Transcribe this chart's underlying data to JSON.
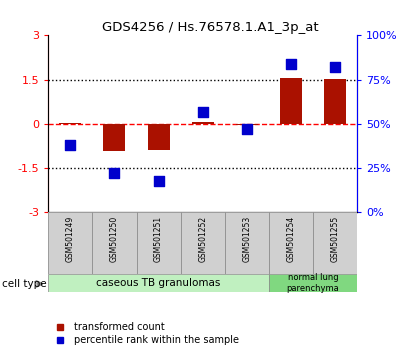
{
  "title": "GDS4256 / Hs.76578.1.A1_3p_at",
  "samples": [
    "GSM501249",
    "GSM501250",
    "GSM501251",
    "GSM501252",
    "GSM501253",
    "GSM501254",
    "GSM501255"
  ],
  "transformed_count": [
    0.02,
    -0.92,
    -0.9,
    0.05,
    -0.05,
    1.55,
    1.52
  ],
  "percentile_rank": [
    38,
    22,
    18,
    57,
    47,
    84,
    82
  ],
  "ylim_left": [
    -3,
    3
  ],
  "ylim_right": [
    0,
    100
  ],
  "yticks_left": [
    -3,
    -1.5,
    0,
    1.5,
    3
  ],
  "yticks_right": [
    0,
    25,
    50,
    75,
    100
  ],
  "bar_color": "#aa1100",
  "dot_color": "#0000cc",
  "bar_width": 0.5,
  "dot_size": 45,
  "background_color": "#ffffff",
  "sample_box_color": "#cccccc",
  "group1_color": "#c0f0c0",
  "group2_color": "#80d880",
  "legend_entries": [
    "transformed count",
    "percentile rank within the sample"
  ]
}
